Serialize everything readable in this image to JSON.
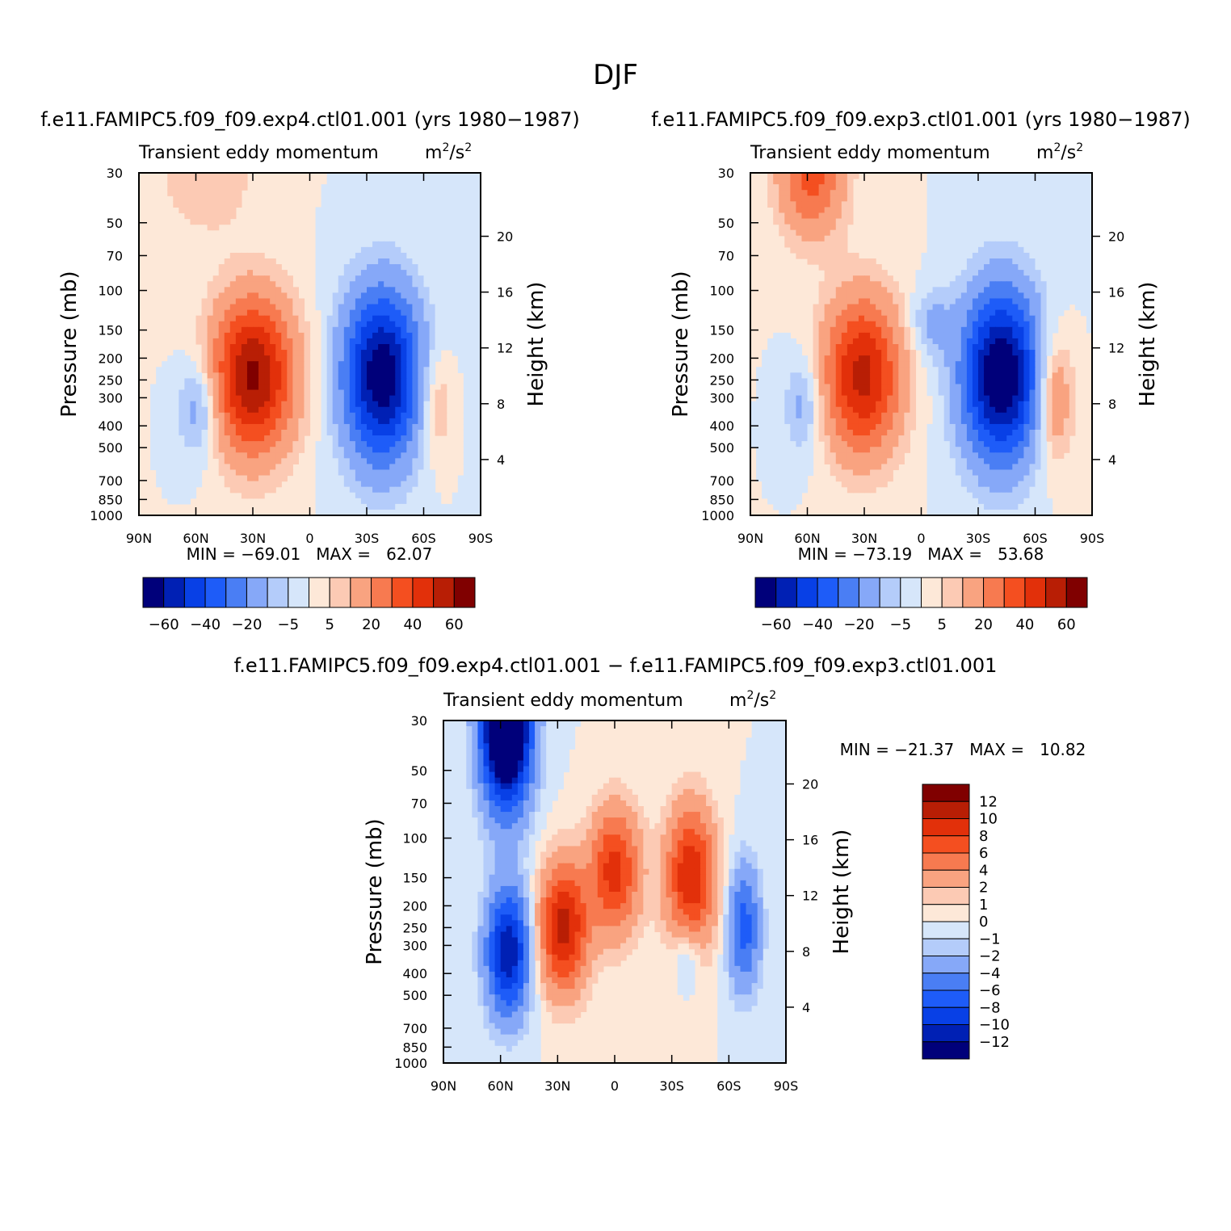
{
  "page": {
    "title": "DJF"
  },
  "colors": {
    "panel_scale": [
      "#00007a",
      "#0020b4",
      "#0840e6",
      "#1e5cf8",
      "#4a7ef4",
      "#86a8f8",
      "#b4ccfa",
      "#d6e6fa",
      "#fde8d8",
      "#fccab4",
      "#f9a380",
      "#f77a50",
      "#f44f20",
      "#e2300a",
      "#b81e05",
      "#800000"
    ],
    "diff_scale": [
      "#00007a",
      "#0020b4",
      "#0840e6",
      "#1e5cf8",
      "#4a7ef4",
      "#86a8f8",
      "#b4ccfa",
      "#d6e6fa",
      "#fde8d8",
      "#fccab4",
      "#f9a380",
      "#f77a50",
      "#f44f20",
      "#e2300a",
      "#b81e05",
      "#800000"
    ]
  },
  "chart_data": [
    {
      "id": "panel1",
      "type": "contour",
      "title": "f.e11.FAMIPC5.f09_f09.exp4.ctl01.001 (yrs 1980−1987)",
      "subtitle_left": "Transient eddy momentum",
      "subtitle_right": "m",
      "subtitle_units_exp": "2",
      "subtitle_units_mid": "/s",
      "ylabel": "Pressure (mb)",
      "ylabel_right": "Height (km)",
      "pressure_ticks": [
        "30",
        "50",
        "70",
        "100",
        "150",
        "200",
        "250",
        "300",
        "400",
        "500",
        "700",
        "850",
        "1000"
      ],
      "pressure_values": [
        30,
        50,
        70,
        100,
        150,
        200,
        250,
        300,
        400,
        500,
        700,
        850,
        1000
      ],
      "height_ticks": [
        "20",
        "16",
        "12",
        "8",
        "4"
      ],
      "height_values": [
        20,
        16,
        12,
        8,
        4
      ],
      "lat_ticks": [
        "90N",
        "60N",
        "30N",
        "0",
        "30S",
        "60S",
        "90S"
      ],
      "lat_values": [
        90,
        60,
        30,
        0,
        -30,
        -60,
        -90
      ],
      "stats_text": "MIN = −69.01   MAX =   62.07",
      "levels": [
        -70,
        -60,
        -50,
        -40,
        -30,
        -20,
        -10,
        -5,
        0,
        5,
        10,
        20,
        30,
        40,
        50,
        60,
        70
      ],
      "colorbar_labels": [
        "−60",
        "−40",
        "−20",
        "−5",
        "5",
        "20",
        "40",
        "60"
      ],
      "features": [
        {
          "lat": 30,
          "p": 240,
          "amp": 62,
          "wlat": 15,
          "wz": 0.55
        },
        {
          "lat": -38,
          "p": 240,
          "amp": -69,
          "wlat": 14,
          "wz": 0.6
        },
        {
          "lat": 58,
          "p": 330,
          "amp": -18,
          "wlat": 8,
          "wz": 0.35
        },
        {
          "lat": -66,
          "p": 320,
          "amp": 14,
          "wlat": 6,
          "wz": 0.4
        },
        {
          "lat": 55,
          "p": 30,
          "amp": 10,
          "wlat": 18,
          "wz": 0.45
        }
      ]
    },
    {
      "id": "panel2",
      "type": "contour",
      "title": "f.e11.FAMIPC5.f09_f09.exp3.ctl01.001 (yrs 1980−1987)",
      "subtitle_left": "Transient eddy momentum",
      "subtitle_right": "m",
      "subtitle_units_exp": "2",
      "subtitle_units_mid": "/s",
      "ylabel": "Pressure (mb)",
      "ylabel_right": "Height (km)",
      "pressure_ticks": [
        "30",
        "50",
        "70",
        "100",
        "150",
        "200",
        "250",
        "300",
        "400",
        "500",
        "700",
        "850",
        "1000"
      ],
      "pressure_values": [
        30,
        50,
        70,
        100,
        150,
        200,
        250,
        300,
        400,
        500,
        700,
        850,
        1000
      ],
      "height_ticks": [
        "20",
        "16",
        "12",
        "8",
        "4"
      ],
      "height_values": [
        20,
        16,
        12,
        8,
        4
      ],
      "lat_ticks": [
        "90N",
        "60N",
        "30N",
        "0",
        "30S",
        "60S",
        "90S"
      ],
      "lat_values": [
        90,
        60,
        30,
        0,
        -30,
        -60,
        -90
      ],
      "stats_text": "MIN = −73.19   MAX =   53.68",
      "levels": [
        -70,
        -60,
        -50,
        -40,
        -30,
        -20,
        -10,
        -5,
        0,
        5,
        10,
        20,
        30,
        40,
        50,
        60,
        70
      ],
      "colorbar_labels": [
        "−60",
        "−40",
        "−20",
        "−5",
        "5",
        "20",
        "40",
        "60"
      ],
      "features": [
        {
          "lat": 31,
          "p": 240,
          "amp": 54,
          "wlat": 14,
          "wz": 0.55
        },
        {
          "lat": -42,
          "p": 240,
          "amp": -73,
          "wlat": 14,
          "wz": 0.6
        },
        {
          "lat": 62,
          "p": 320,
          "amp": -14,
          "wlat": 7,
          "wz": 0.35
        },
        {
          "lat": -70,
          "p": 300,
          "amp": 22,
          "wlat": 7,
          "wz": 0.45
        },
        {
          "lat": 58,
          "p": 30,
          "amp": 34,
          "wlat": 12,
          "wz": 0.45
        },
        {
          "lat": -5,
          "p": 140,
          "amp": -12,
          "wlat": 8,
          "wz": 0.25
        }
      ]
    },
    {
      "id": "diff",
      "type": "contour",
      "title": "f.e11.FAMIPC5.f09_f09.exp4.ctl01.001 − f.e11.FAMIPC5.f09_f09.exp3.ctl01.001",
      "subtitle_left": "Transient eddy momentum",
      "subtitle_right": "m",
      "subtitle_units_exp": "2",
      "subtitle_units_mid": "/s",
      "ylabel": "Pressure (mb)",
      "ylabel_right": "Height (km)",
      "pressure_ticks": [
        "30",
        "50",
        "70",
        "100",
        "150",
        "200",
        "250",
        "300",
        "400",
        "500",
        "700",
        "850",
        "1000"
      ],
      "pressure_values": [
        30,
        50,
        70,
        100,
        150,
        200,
        250,
        300,
        400,
        500,
        700,
        850,
        1000
      ],
      "height_ticks": [
        "20",
        "16",
        "12",
        "8",
        "4"
      ],
      "height_values": [
        20,
        16,
        12,
        8,
        4
      ],
      "lat_ticks": [
        "90N",
        "60N",
        "30N",
        "0",
        "30S",
        "60S",
        "90S"
      ],
      "lat_values": [
        90,
        60,
        30,
        0,
        -30,
        -60,
        -90
      ],
      "stats_text": "MIN = −21.37   MAX =   10.82",
      "levels": [
        -14,
        -12,
        -10,
        -8,
        -6,
        -4,
        -2,
        -1,
        0,
        1,
        2,
        4,
        6,
        8,
        10,
        12,
        14
      ],
      "colorbar_labels": [
        "12",
        "10",
        "8",
        "6",
        "4",
        "2",
        "1",
        "0",
        "−1",
        "−2",
        "−4",
        "−6",
        "−8",
        "−10",
        "−12"
      ],
      "features": [
        {
          "lat": 57,
          "p": 30,
          "amp": -21,
          "wlat": 9,
          "wz": 0.6
        },
        {
          "lat": 56,
          "p": 320,
          "amp": -12,
          "wlat": 8,
          "wz": 0.45
        },
        {
          "lat": 27,
          "p": 250,
          "amp": 11,
          "wlat": 9,
          "wz": 0.45
        },
        {
          "lat": 0,
          "p": 140,
          "amp": 9,
          "wlat": 9,
          "wz": 0.45
        },
        {
          "lat": -40,
          "p": 150,
          "amp": 10,
          "wlat": 9,
          "wz": 0.5
        },
        {
          "lat": -68,
          "p": 250,
          "amp": -7,
          "wlat": 6,
          "wz": 0.45
        },
        {
          "lat": -38,
          "p": 320,
          "amp": -3,
          "wlat": 5,
          "wz": 0.25
        }
      ]
    }
  ]
}
